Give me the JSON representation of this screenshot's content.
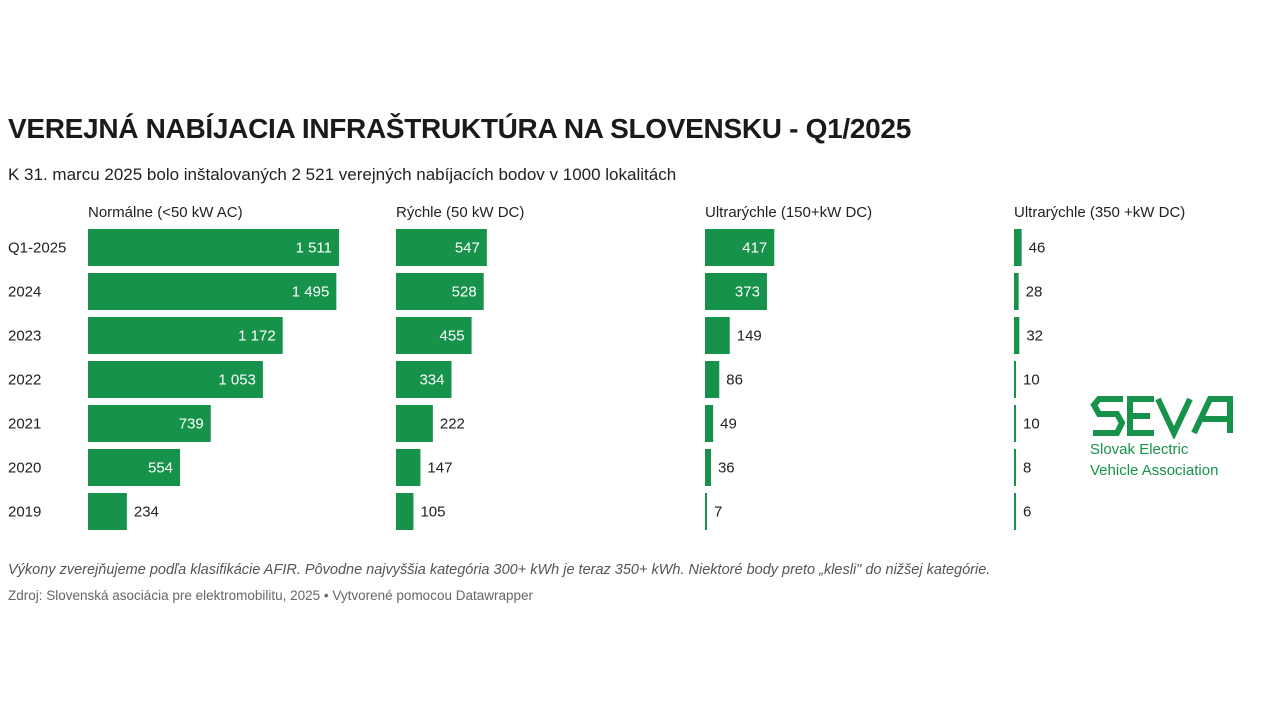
{
  "title": "VEREJNÁ NABÍJACIA INFRAŠTRUKTÚRA NA SLOVENSKU - Q1/2025",
  "subtitle": "K 31. marcu 2025 bolo inštalovaných 2 521 verejných nabíjacích bodov v 1000 lokalitách",
  "note": "Výkony zverejňujeme podľa klasifikácie AFIR. Pôvodne najvyššia kategória 300+ kWh je teraz 350+ kWh. Niektoré body preto „klesli\" do nižšej kategórie.",
  "source": "Zdroj: Slovenská asociácia pre elektromobilitu, 2025 • Vytvorené pomocou Datawrapper",
  "logo": {
    "text_line1": "Slovak Electric",
    "text_line2": "Vehicle Association",
    "wordmark": "SEVA",
    "color": "#16924b"
  },
  "colors": {
    "bar": "#16924b"
  },
  "chart_data": {
    "type": "bar",
    "orientation": "horizontal",
    "title": "VEREJNÁ NABÍJACIA INFRAŠTRUKTÚRA NA SLOVENSKU - Q1/2025",
    "subtitle": "K 31. marcu 2025 bolo inštalovaných 2 521 verejných nabíjacích bodov v 1000 lokalitách",
    "categories": [
      "Q1-2025",
      "2024",
      "2023",
      "2022",
      "2021",
      "2020",
      "2019"
    ],
    "series": [
      {
        "name": "Normálne (<50 kW AC)",
        "values": [
          1511,
          1495,
          1172,
          1053,
          739,
          554,
          234
        ],
        "labels": [
          "1 511",
          "1 495",
          "1 172",
          "1 053",
          "739",
          "554",
          "234"
        ]
      },
      {
        "name": "Rýchle (50 kW DC)",
        "values": [
          547,
          528,
          455,
          334,
          222,
          147,
          105
        ],
        "labels": [
          "547",
          "528",
          "455",
          "334",
          "222",
          "147",
          "105"
        ]
      },
      {
        "name": "Ultrarýchle (150+kW DC)",
        "values": [
          417,
          373,
          149,
          86,
          49,
          36,
          7
        ],
        "labels": [
          "417",
          "373",
          "149",
          "86",
          "49",
          "36",
          "7"
        ]
      },
      {
        "name": "Ultrarýchle (350 +kW DC)",
        "values": [
          46,
          28,
          32,
          10,
          10,
          8,
          6
        ],
        "labels": [
          "46",
          "28",
          "32",
          "10",
          "10",
          "8",
          "6"
        ]
      }
    ],
    "shared_scale_max": 1511,
    "grid": false,
    "legend": "none"
  }
}
